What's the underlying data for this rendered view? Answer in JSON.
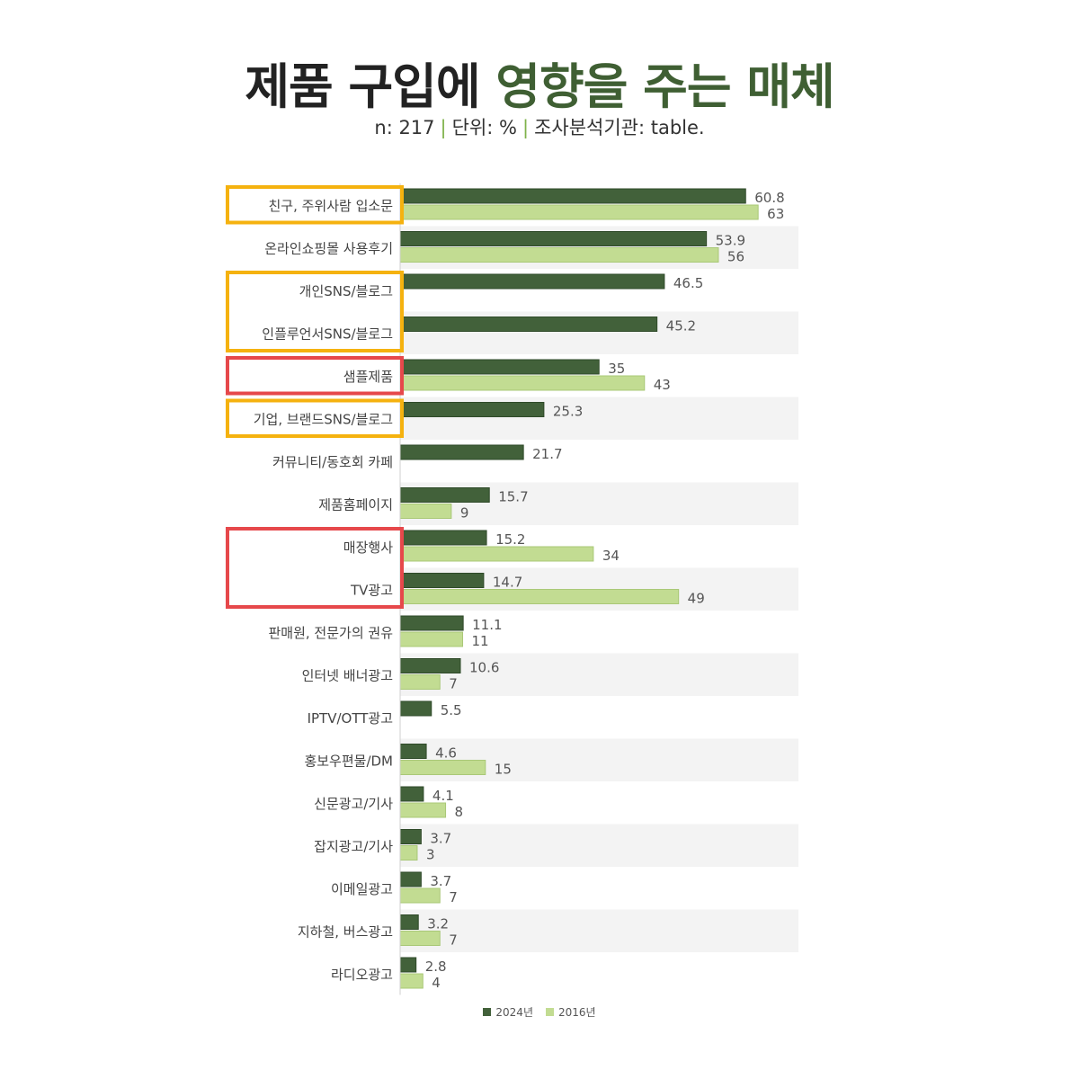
{
  "title": {
    "main": "제품 구입에",
    "accent": "영향을 주는 매체"
  },
  "subtitle": {
    "n": "n: 217",
    "unit": "단위: %",
    "source": "조사분석기관: table."
  },
  "colors": {
    "series_2024": "#42613a",
    "series_2016": "#c2dc92",
    "highlight_orange": "#f5b20f",
    "highlight_red": "#e6484b",
    "band": "#f3f3f3"
  },
  "chart_data": {
    "type": "bar",
    "orientation": "horizontal",
    "categories": [
      "친구, 주위사람 입소문",
      "온라인쇼핑몰 사용후기",
      "개인SNS/블로그",
      "인플루언서SNS/블로그",
      "샘플제품",
      "기업, 브랜드SNS/블로그",
      "커뮤니티/동호회 카페",
      "제품홈페이지",
      "매장행사",
      "TV광고",
      "판매원, 전문가의 권유",
      "인터넷 배너광고",
      "IPTV/OTT광고",
      "홍보우편물/DM",
      "신문광고/기사",
      "잡지광고/기사",
      "이메일광고",
      "지하철, 버스광고",
      "라디오광고"
    ],
    "series": [
      {
        "name": "2024년",
        "values": [
          60.8,
          53.9,
          46.5,
          45.2,
          35,
          25.3,
          21.7,
          15.7,
          15.2,
          14.7,
          11.1,
          10.6,
          5.5,
          4.6,
          4.1,
          3.7,
          3.7,
          3.2,
          2.8
        ]
      },
      {
        "name": "2016년",
        "values": [
          63,
          56,
          null,
          null,
          43,
          null,
          null,
          9,
          34,
          49,
          11,
          7,
          null,
          15,
          8,
          3,
          7,
          7,
          4
        ]
      }
    ],
    "xlim": [
      0,
      70
    ],
    "legend": "bottom-center",
    "highlights": [
      {
        "color": "orange",
        "rows": [
          0
        ]
      },
      {
        "color": "orange",
        "rows": [
          2,
          3
        ]
      },
      {
        "color": "red",
        "rows": [
          4
        ]
      },
      {
        "color": "orange",
        "rows": [
          5
        ]
      },
      {
        "color": "red",
        "rows": [
          8,
          9
        ]
      }
    ]
  }
}
